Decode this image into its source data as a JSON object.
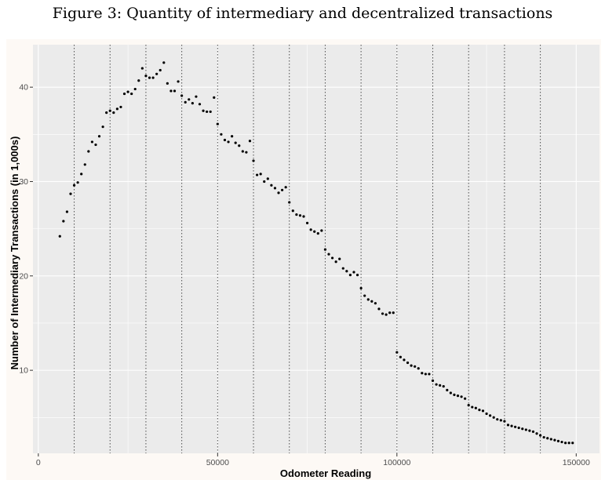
{
  "figure_title": "Figure 3: Quantity of intermediary and decentralized transactions",
  "chart_data": {
    "type": "scatter",
    "title": "",
    "xlabel": "Odometer Reading",
    "ylabel": "Number of Intermediary Transactions (in 1,000s)",
    "xlim": [
      -1500,
      156500
    ],
    "ylim": [
      1.2,
      44.5
    ],
    "x_ticks": [
      0,
      50000,
      100000,
      150000
    ],
    "x_tick_labels": [
      "0",
      "50000",
      "100000",
      "150000"
    ],
    "y_ticks": [
      10,
      20,
      30,
      40
    ],
    "y_tick_labels": [
      "10",
      "20",
      "30",
      "40"
    ],
    "vlines": [
      10000,
      20000,
      30000,
      40000,
      50000,
      60000,
      70000,
      80000,
      90000,
      100000,
      110000,
      120000,
      130000,
      140000
    ],
    "grid": true,
    "legend": "none",
    "colors": {
      "panel_bg": "#ebebeb",
      "outer_bg": "#fdf9f5",
      "grid": "#ffffff",
      "points": "#000000",
      "vline": "#4d4d4d"
    },
    "points": [
      [
        6000,
        24.2
      ],
      [
        7000,
        25.8
      ],
      [
        8000,
        26.8
      ],
      [
        9000,
        28.7
      ],
      [
        10000,
        29.6
      ],
      [
        11000,
        29.9
      ],
      [
        12000,
        30.8
      ],
      [
        13000,
        31.8
      ],
      [
        14000,
        33.2
      ],
      [
        15000,
        34.2
      ],
      [
        16000,
        33.9
      ],
      [
        17000,
        34.8
      ],
      [
        18000,
        35.8
      ],
      [
        19000,
        37.3
      ],
      [
        20000,
        37.5
      ],
      [
        21000,
        37.3
      ],
      [
        22000,
        37.7
      ],
      [
        23000,
        37.9
      ],
      [
        24000,
        39.3
      ],
      [
        25000,
        39.5
      ],
      [
        26000,
        39.3
      ],
      [
        27000,
        39.8
      ],
      [
        28000,
        40.7
      ],
      [
        29000,
        42.0
      ],
      [
        30000,
        41.2
      ],
      [
        31000,
        41.0
      ],
      [
        32000,
        41.0
      ],
      [
        33000,
        41.4
      ],
      [
        34000,
        41.8
      ],
      [
        35000,
        42.6
      ],
      [
        36000,
        40.4
      ],
      [
        37000,
        39.6
      ],
      [
        38000,
        39.6
      ],
      [
        39000,
        40.6
      ],
      [
        40000,
        39.1
      ],
      [
        41000,
        38.4
      ],
      [
        42000,
        38.7
      ],
      [
        43000,
        38.3
      ],
      [
        44000,
        39.0
      ],
      [
        45000,
        38.2
      ],
      [
        46000,
        37.5
      ],
      [
        47000,
        37.4
      ],
      [
        48000,
        37.4
      ],
      [
        49000,
        38.9
      ],
      [
        50000,
        36.1
      ],
      [
        51000,
        35.0
      ],
      [
        52000,
        34.4
      ],
      [
        53000,
        34.2
      ],
      [
        54000,
        34.8
      ],
      [
        55000,
        34.1
      ],
      [
        56000,
        33.8
      ],
      [
        57000,
        33.2
      ],
      [
        58000,
        33.1
      ],
      [
        59000,
        34.3
      ],
      [
        60000,
        32.2
      ],
      [
        61000,
        30.7
      ],
      [
        62000,
        30.8
      ],
      [
        63000,
        30.0
      ],
      [
        64000,
        30.3
      ],
      [
        65000,
        29.6
      ],
      [
        66000,
        29.3
      ],
      [
        67000,
        28.8
      ],
      [
        68000,
        29.1
      ],
      [
        69000,
        29.4
      ],
      [
        70000,
        27.8
      ],
      [
        71000,
        26.9
      ],
      [
        72000,
        26.5
      ],
      [
        73000,
        26.4
      ],
      [
        74000,
        26.3
      ],
      [
        75000,
        25.6
      ],
      [
        76000,
        24.9
      ],
      [
        77000,
        24.7
      ],
      [
        78000,
        24.5
      ],
      [
        79000,
        24.8
      ],
      [
        80000,
        22.8
      ],
      [
        81000,
        22.3
      ],
      [
        82000,
        21.9
      ],
      [
        83000,
        21.5
      ],
      [
        84000,
        21.8
      ],
      [
        85000,
        20.8
      ],
      [
        86000,
        20.5
      ],
      [
        87000,
        20.1
      ],
      [
        88000,
        20.4
      ],
      [
        89000,
        20.1
      ],
      [
        90000,
        18.7
      ],
      [
        91000,
        17.9
      ],
      [
        92000,
        17.5
      ],
      [
        93000,
        17.3
      ],
      [
        94000,
        17.1
      ],
      [
        95000,
        16.5
      ],
      [
        96000,
        16.0
      ],
      [
        97000,
        15.9
      ],
      [
        98000,
        16.1
      ],
      [
        99000,
        16.1
      ],
      [
        100000,
        11.9
      ],
      [
        101000,
        11.4
      ],
      [
        102000,
        11.1
      ],
      [
        103000,
        10.8
      ],
      [
        104000,
        10.5
      ],
      [
        105000,
        10.4
      ],
      [
        106000,
        10.2
      ],
      [
        107000,
        9.7
      ],
      [
        108000,
        9.6
      ],
      [
        109000,
        9.6
      ],
      [
        110000,
        8.9
      ],
      [
        111000,
        8.5
      ],
      [
        112000,
        8.4
      ],
      [
        113000,
        8.3
      ],
      [
        114000,
        7.9
      ],
      [
        115000,
        7.6
      ],
      [
        116000,
        7.4
      ],
      [
        117000,
        7.3
      ],
      [
        118000,
        7.2
      ],
      [
        119000,
        7.0
      ],
      [
        120000,
        6.3
      ],
      [
        121000,
        6.1
      ],
      [
        122000,
        6.0
      ],
      [
        123000,
        5.8
      ],
      [
        124000,
        5.7
      ],
      [
        125000,
        5.4
      ],
      [
        126000,
        5.2
      ],
      [
        127000,
        5.0
      ],
      [
        128000,
        4.8
      ],
      [
        129000,
        4.7
      ],
      [
        130000,
        4.6
      ],
      [
        131000,
        4.2
      ],
      [
        132000,
        4.1
      ],
      [
        133000,
        4.0
      ],
      [
        134000,
        3.9
      ],
      [
        135000,
        3.8
      ],
      [
        136000,
        3.7
      ],
      [
        137000,
        3.6
      ],
      [
        138000,
        3.5
      ],
      [
        139000,
        3.3
      ],
      [
        140000,
        3.1
      ],
      [
        141000,
        2.9
      ],
      [
        142000,
        2.8
      ],
      [
        143000,
        2.7
      ],
      [
        144000,
        2.6
      ],
      [
        145000,
        2.5
      ],
      [
        146000,
        2.4
      ],
      [
        147000,
        2.3
      ],
      [
        148000,
        2.3
      ],
      [
        149000,
        2.3
      ]
    ]
  }
}
